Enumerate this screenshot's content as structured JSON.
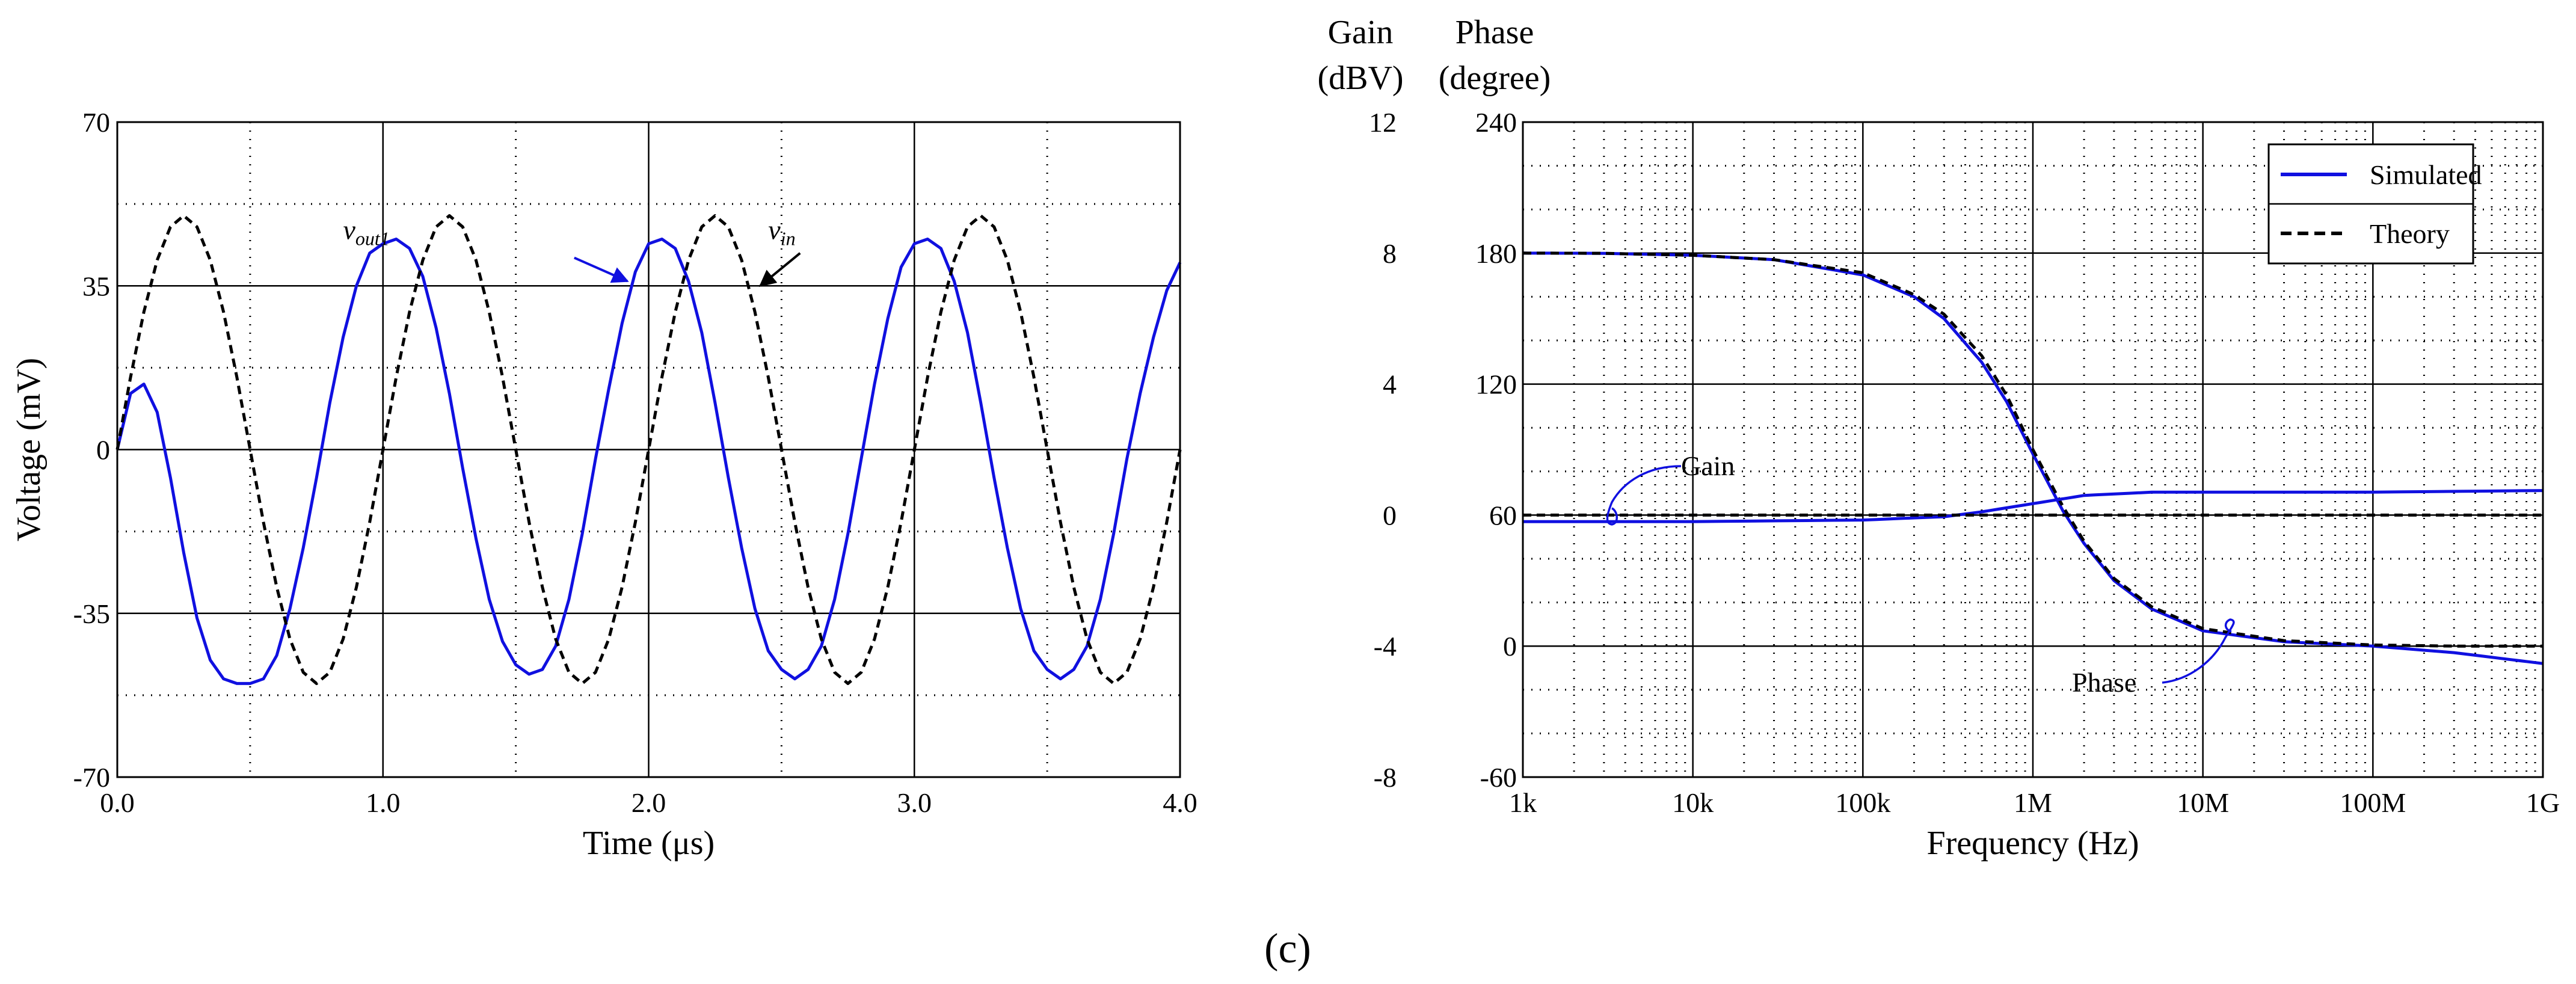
{
  "caption": "(c)",
  "chart_data": [
    {
      "type": "line",
      "xlabel": "Time (μs)",
      "ylabel": "Voltage (mV)",
      "xlim": [
        0,
        4
      ],
      "ylim": [
        -70,
        70
      ],
      "x_ticks": [
        "0.0",
        "1.0",
        "2.0",
        "3.0",
        "4.0"
      ],
      "y_ticks": [
        "70",
        "35",
        "0",
        "-35",
        "-70"
      ],
      "grid": true,
      "series": [
        {
          "name": "v_out1",
          "label_main": "v",
          "label_sub": "out1",
          "color": "#1010e0",
          "style": "solid",
          "x": [
            0,
            0.05,
            0.1,
            0.15,
            0.2,
            0.25,
            0.3,
            0.35,
            0.4,
            0.45,
            0.5,
            0.55,
            0.6,
            0.65,
            0.7,
            0.75,
            0.8,
            0.85,
            0.9,
            0.95,
            1.0,
            1.05,
            1.1,
            1.15,
            1.2,
            1.25,
            1.3,
            1.35,
            1.4,
            1.45,
            1.5,
            1.55,
            1.6,
            1.65,
            1.7,
            1.75,
            1.8,
            1.85,
            1.9,
            1.95,
            2.0,
            2.05,
            2.1,
            2.15,
            2.2,
            2.25,
            2.3,
            2.35,
            2.4,
            2.45,
            2.5,
            2.55,
            2.6,
            2.65,
            2.7,
            2.75,
            2.8,
            2.85,
            2.9,
            2.95,
            3.0,
            3.05,
            3.1,
            3.15,
            3.2,
            3.25,
            3.3,
            3.35,
            3.4,
            3.45,
            3.5,
            3.55,
            3.6,
            3.65,
            3.7,
            3.75,
            3.8,
            3.85,
            3.9,
            3.95,
            4.0
          ],
          "values": [
            0,
            12,
            14,
            8,
            -6,
            -22,
            -36,
            -45,
            -49,
            -50,
            -50,
            -49,
            -44,
            -34,
            -21,
            -6,
            10,
            24,
            35,
            42,
            44,
            45,
            43,
            37,
            26,
            12,
            -4,
            -19,
            -32,
            -41,
            -46,
            -48,
            -47,
            -42,
            -32,
            -18,
            -2,
            13,
            27,
            38,
            44,
            45,
            43,
            36,
            25,
            10,
            -6,
            -21,
            -34,
            -43,
            -47,
            -49,
            -47,
            -42,
            -32,
            -18,
            -2,
            14,
            28,
            39,
            44,
            45,
            43,
            36,
            25,
            10,
            -6,
            -21,
            -34,
            -43,
            -47,
            -49,
            -47,
            -42,
            -32,
            -18,
            -2,
            12,
            24,
            34,
            40
          ]
        },
        {
          "name": "v_in",
          "label_main": "v",
          "label_sub": "in",
          "color": "#000000",
          "style": "dashed",
          "x": [
            0,
            0.05,
            0.1,
            0.15,
            0.2,
            0.25,
            0.3,
            0.35,
            0.4,
            0.45,
            0.5,
            0.55,
            0.6,
            0.65,
            0.7,
            0.75,
            0.8,
            0.85,
            0.9,
            0.95,
            1.0,
            1.05,
            1.1,
            1.15,
            1.2,
            1.25,
            1.3,
            1.35,
            1.4,
            1.45,
            1.5,
            1.55,
            1.6,
            1.65,
            1.7,
            1.75,
            1.8,
            1.85,
            1.9,
            1.95,
            2.0,
            2.05,
            2.1,
            2.15,
            2.2,
            2.25,
            2.3,
            2.35,
            2.4,
            2.45,
            2.5,
            2.55,
            2.6,
            2.65,
            2.7,
            2.75,
            2.8,
            2.85,
            2.9,
            2.95,
            3.0,
            3.05,
            3.1,
            3.15,
            3.2,
            3.25,
            3.3,
            3.35,
            3.4,
            3.45,
            3.5,
            3.55,
            3.6,
            3.65,
            3.7,
            3.75,
            3.8,
            3.85,
            3.9,
            3.95,
            4.0
          ],
          "values": [
            0,
            15.5,
            29.4,
            40.5,
            47.6,
            50,
            47.6,
            40.5,
            29.4,
            15.5,
            0,
            -15.5,
            -29.4,
            -40.5,
            -47.6,
            -50,
            -47.6,
            -40.5,
            -29.4,
            -15.5,
            0,
            15.5,
            29.4,
            40.5,
            47.6,
            50,
            47.6,
            40.5,
            29.4,
            15.5,
            0,
            -15.5,
            -29.4,
            -40.5,
            -47.6,
            -50,
            -47.6,
            -40.5,
            -29.4,
            -15.5,
            0,
            15.5,
            29.4,
            40.5,
            47.6,
            50,
            47.6,
            40.5,
            29.4,
            15.5,
            0,
            -15.5,
            -29.4,
            -40.5,
            -47.6,
            -50,
            -47.6,
            -40.5,
            -29.4,
            -15.5,
            0,
            15.5,
            29.4,
            40.5,
            47.6,
            50,
            47.6,
            40.5,
            29.4,
            15.5,
            0,
            -15.5,
            -29.4,
            -40.5,
            -47.6,
            -50,
            -47.6,
            -40.5,
            -29.4,
            -15.5,
            0
          ]
        }
      ]
    },
    {
      "type": "line",
      "xlabel": "Frequency (Hz)",
      "xscale": "log",
      "xlim": [
        1000,
        1000000000
      ],
      "x_ticks": [
        "1k",
        "10k",
        "100k",
        "1M",
        "10M",
        "100M",
        "1G"
      ],
      "gain_axis": {
        "head": [
          "Gain",
          "(dBV)"
        ],
        "ylim": [
          -8,
          12
        ],
        "ticks": [
          "12",
          "8",
          "4",
          "0",
          "-4",
          "-8"
        ]
      },
      "phase_axis": {
        "head": [
          "Phase",
          "(degree)"
        ],
        "ylim": [
          -60,
          240
        ],
        "ticks": [
          "240",
          "180",
          "120",
          "60",
          "0",
          "-60"
        ]
      },
      "grid": true,
      "legend": {
        "placement": "top-right",
        "entries": [
          "Simulated",
          "Theory"
        ]
      },
      "annotations": [
        "Gain",
        "Phase"
      ],
      "series": [
        {
          "name": "Simulated",
          "quantity": "Phase",
          "axis": "phase",
          "color": "#1010e0",
          "style": "solid",
          "x": [
            1000,
            3000,
            10000,
            30000,
            100000,
            200000,
            300000,
            500000,
            700000,
            1000000,
            1500000,
            2000000,
            3000000,
            5000000,
            10000000,
            30000000,
            100000000,
            300000000,
            1000000000
          ],
          "values": [
            180,
            179.9,
            179,
            177,
            170,
            160,
            150,
            130,
            112,
            88,
            62,
            47,
            30,
            17,
            7,
            2,
            0,
            -3,
            -8
          ]
        },
        {
          "name": "Theory",
          "quantity": "Phase",
          "axis": "phase",
          "color": "#000000",
          "style": "dashed",
          "x": [
            1000,
            3000,
            10000,
            30000,
            100000,
            200000,
            300000,
            500000,
            700000,
            1000000,
            1500000,
            2000000,
            3000000,
            5000000,
            10000000,
            30000000,
            100000000,
            300000000,
            1000000000
          ],
          "values": [
            180,
            179.9,
            179,
            177,
            171,
            161,
            152,
            133,
            115,
            90,
            64,
            48,
            31,
            18,
            8,
            2.5,
            0.5,
            0,
            0
          ]
        },
        {
          "name": "Simulated",
          "quantity": "Gain",
          "axis": "gain",
          "color": "#1010e0",
          "style": "solid",
          "x": [
            1000,
            10000,
            100000,
            300000,
            500000,
            1000000,
            2000000,
            5000000,
            10000000,
            100000000,
            1000000000
          ],
          "values": [
            -0.2,
            -0.2,
            -0.15,
            -0.05,
            0.1,
            0.35,
            0.6,
            0.7,
            0.7,
            0.7,
            0.75
          ]
        },
        {
          "name": "Theory",
          "quantity": "Gain",
          "axis": "gain",
          "color": "#000000",
          "style": "dashed",
          "x": [
            1000,
            1000000000
          ],
          "values": [
            0,
            0
          ]
        }
      ]
    }
  ]
}
